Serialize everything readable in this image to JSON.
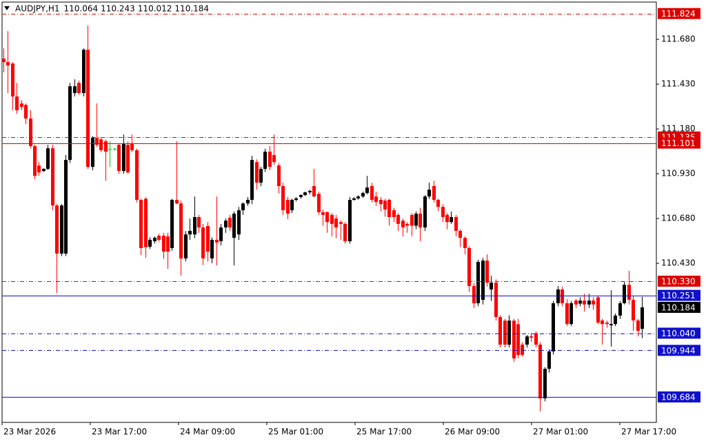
{
  "chart_data": {
    "type": "candlestick",
    "header": {
      "symbol": "AUDJPY,H1",
      "ohlc": [
        "110.064",
        "110.243",
        "110.012",
        "110.184"
      ]
    },
    "bull_color": "#000000",
    "bear_color": "#ff0000",
    "doji_color": "#00c000",
    "ylim": [
      109.542,
      111.888
    ],
    "yticks": [
      {
        "value": 110.43,
        "label": "110.430"
      },
      {
        "value": 110.68,
        "label": "110.680"
      },
      {
        "value": 110.93,
        "label": "110.930"
      },
      {
        "value": 111.18,
        "label": "111.180"
      },
      {
        "value": 111.43,
        "label": "111.430"
      },
      {
        "value": 111.68,
        "label": "111.680"
      }
    ],
    "x_labels": [
      "23 Mar 2026",
      "23 Mar 17:00",
      "24 Mar 09:00",
      "25 Mar 01:00",
      "25 Mar 17:00",
      "26 Mar 09:00",
      "27 Mar 01:00",
      "27 Mar 17:00"
    ],
    "levels": [
      {
        "value": 111.824,
        "label": "111.824",
        "color": "#dd0000",
        "style": "dashdot"
      },
      {
        "value": 111.135,
        "label": "111.135",
        "color": "#dd0000",
        "style": "dashdot"
      },
      {
        "value": 111.101,
        "label": "111.101",
        "color": "#dd0000",
        "style": "solid"
      },
      {
        "value": 110.33,
        "label": "110.330",
        "color": "#dd0000",
        "style": "dashdot"
      },
      {
        "value": 110.251,
        "label": "110.251",
        "color": "#1010cc",
        "style": "solid"
      },
      {
        "value": 110.04,
        "label": "110.040",
        "color": "#1010cc",
        "style": "dashdot"
      },
      {
        "value": 109.944,
        "label": "109.944",
        "color": "#1010cc",
        "style": "dashdot"
      },
      {
        "value": 109.684,
        "label": "109.684",
        "color": "#1010cc",
        "style": "solid"
      }
    ],
    "current": {
      "value": 110.184,
      "label": "110.184",
      "color": "#000000"
    },
    "candles": [
      [
        111.572,
        111.63,
        111.495,
        111.553
      ],
      [
        111.553,
        111.726,
        111.38,
        111.534
      ],
      [
        111.545,
        111.553,
        111.284,
        111.361
      ],
      [
        111.361,
        111.437,
        111.264,
        111.284
      ],
      [
        111.322,
        111.341,
        111.284,
        111.303
      ],
      [
        111.314,
        111.322,
        111.207,
        111.238
      ],
      [
        111.238,
        111.284,
        111.072,
        111.084
      ],
      [
        111.084,
        111.091,
        110.899,
        110.918
      ],
      [
        110.976,
        110.995,
        110.918,
        110.937
      ],
      [
        110.945,
        110.96,
        110.94,
        110.957
      ],
      [
        110.957,
        111.091,
        110.95,
        111.072
      ],
      [
        111.072,
        111.091,
        110.726,
        110.753
      ],
      [
        110.753,
        110.76,
        110.264,
        110.484
      ],
      [
        110.484,
        110.76,
        110.47,
        110.753
      ],
      [
        110.484,
        111.034,
        110.47,
        111.007
      ],
      [
        111.007,
        111.437,
        110.99,
        111.418
      ],
      [
        111.38,
        111.457,
        111.361,
        111.418
      ],
      [
        111.437,
        111.45,
        111.37,
        111.38
      ],
      [
        111.38,
        111.63,
        111.361,
        111.622
      ],
      [
        111.622,
        111.757,
        110.957,
        110.968
      ],
      [
        110.968,
        111.14,
        110.95,
        111.13
      ],
      [
        111.13,
        111.322,
        111.08,
        111.091
      ],
      [
        111.122,
        111.13,
        111.05,
        111.061
      ],
      [
        111.111,
        111.12,
        110.891,
        111.053
      ],
      [
        111.068,
        111.111,
        110.968,
        111.068
      ],
      [
        111.068,
        111.075,
        111.06,
        111.068
      ],
      [
        111.091,
        111.1,
        110.93,
        110.945
      ],
      [
        110.945,
        111.149,
        110.93,
        111.099
      ],
      [
        111.091,
        111.11,
        110.93,
        110.937
      ],
      [
        111.099,
        111.149,
        111.05,
        111.061
      ],
      [
        111.061,
        111.07,
        110.77,
        110.784
      ],
      [
        110.784,
        110.79,
        110.476,
        110.515
      ],
      [
        110.79,
        110.8,
        110.46,
        110.52
      ],
      [
        110.522,
        110.575,
        110.51,
        110.561
      ],
      [
        110.553,
        110.58,
        110.54,
        110.572
      ],
      [
        110.584,
        110.595,
        110.55,
        110.561
      ],
      [
        110.584,
        110.6,
        110.455,
        110.495
      ],
      [
        110.58,
        110.6,
        110.399,
        110.495
      ],
      [
        110.515,
        110.79,
        110.5,
        110.784
      ],
      [
        110.784,
        111.111,
        110.76,
        110.764
      ],
      [
        110.764,
        110.78,
        110.361,
        110.457
      ],
      [
        110.457,
        110.61,
        110.44,
        110.591
      ],
      [
        110.591,
        110.68,
        110.56,
        110.611
      ],
      [
        110.591,
        110.803,
        110.57,
        110.688
      ],
      [
        110.688,
        110.7,
        110.6,
        110.63
      ],
      [
        110.63,
        110.65,
        110.42,
        110.457
      ],
      [
        110.638,
        110.66,
        110.44,
        110.495
      ],
      [
        110.457,
        110.575,
        110.43,
        110.561
      ],
      [
        110.561,
        110.803,
        110.418,
        110.546
      ],
      [
        110.553,
        110.65,
        110.53,
        110.63
      ],
      [
        110.63,
        110.68,
        110.6,
        110.668
      ],
      [
        110.684,
        110.7,
        110.61,
        110.63
      ],
      [
        110.572,
        110.72,
        110.418,
        110.707
      ],
      [
        110.591,
        110.745,
        110.56,
        110.726
      ],
      [
        110.726,
        110.77,
        110.7,
        110.764
      ],
      [
        110.764,
        110.8,
        110.75,
        110.784
      ],
      [
        110.784,
        111.03,
        110.76,
        111.007
      ],
      [
        110.995,
        111.01,
        110.841,
        110.88
      ],
      [
        110.88,
        110.97,
        110.86,
        110.957
      ],
      [
        110.957,
        111.07,
        110.94,
        111.053
      ],
      [
        111.053,
        111.084,
        110.95,
        110.968
      ],
      [
        111.034,
        111.149,
        110.98,
        110.995
      ],
      [
        110.976,
        110.99,
        110.82,
        110.861
      ],
      [
        110.861,
        110.88,
        110.7,
        110.726
      ],
      [
        110.784,
        110.8,
        110.676,
        110.707
      ],
      [
        110.726,
        110.79,
        110.71,
        110.784
      ],
      [
        110.784,
        110.8,
        110.775,
        110.792
      ],
      [
        110.8,
        110.815,
        110.79,
        110.811
      ],
      [
        110.811,
        110.83,
        110.805,
        110.826
      ],
      [
        110.826,
        110.84,
        110.815,
        110.834
      ],
      [
        110.861,
        110.957,
        110.8,
        110.803
      ],
      [
        110.818,
        110.83,
        110.7,
        110.715
      ],
      [
        110.715,
        110.73,
        110.64,
        110.7
      ],
      [
        110.715,
        110.72,
        110.6,
        110.66
      ],
      [
        110.7,
        110.71,
        110.58,
        110.65
      ],
      [
        110.68,
        110.7,
        110.57,
        110.63
      ],
      [
        110.66,
        110.67,
        110.56,
        110.65
      ],
      [
        110.65,
        110.66,
        110.54,
        110.553
      ],
      [
        110.553,
        110.8,
        110.54,
        110.784
      ],
      [
        110.784,
        110.8,
        110.78,
        110.792
      ],
      [
        110.792,
        110.81,
        110.785,
        110.803
      ],
      [
        110.803,
        110.83,
        110.795,
        110.822
      ],
      [
        110.822,
        110.918,
        110.815,
        110.853
      ],
      [
        110.861,
        110.88,
        110.77,
        110.784
      ],
      [
        110.803,
        110.83,
        110.75,
        110.772
      ],
      [
        110.784,
        110.8,
        110.72,
        110.76
      ],
      [
        110.78,
        110.79,
        110.69,
        110.73
      ],
      [
        110.784,
        110.79,
        110.64,
        110.688
      ],
      [
        110.726,
        110.74,
        110.66,
        110.688
      ],
      [
        110.7,
        110.71,
        110.61,
        110.65
      ],
      [
        110.668,
        110.68,
        110.58,
        110.63
      ],
      [
        110.65,
        110.66,
        110.6,
        110.64
      ],
      [
        110.7,
        110.71,
        110.58,
        110.64
      ],
      [
        110.64,
        110.72,
        110.62,
        110.707
      ],
      [
        110.707,
        110.74,
        110.553,
        110.63
      ],
      [
        110.63,
        110.81,
        110.61,
        110.803
      ],
      [
        110.803,
        110.88,
        110.79,
        110.841
      ],
      [
        110.861,
        110.891,
        110.77,
        110.784
      ],
      [
        110.784,
        110.79,
        110.72,
        110.745
      ],
      [
        110.745,
        110.76,
        110.66,
        110.688
      ],
      [
        110.7,
        110.71,
        110.62,
        110.66
      ],
      [
        110.66,
        110.72,
        110.65,
        110.688
      ],
      [
        110.688,
        110.7,
        110.58,
        110.611
      ],
      [
        110.611,
        110.62,
        110.52,
        110.572
      ],
      [
        110.572,
        110.58,
        110.48,
        110.515
      ],
      [
        110.515,
        110.525,
        110.27,
        110.303
      ],
      [
        110.303,
        110.32,
        110.18,
        110.207
      ],
      [
        110.207,
        110.45,
        110.19,
        110.438
      ],
      [
        110.226,
        110.46,
        110.2,
        110.445
      ],
      [
        110.445,
        110.48,
        110.3,
        110.322
      ],
      [
        110.284,
        110.36,
        110.22,
        110.322
      ],
      [
        110.322,
        110.34,
        110.11,
        110.13
      ],
      [
        110.13,
        110.14,
        109.96,
        109.976
      ],
      [
        110.11,
        110.12,
        109.96,
        109.976
      ],
      [
        109.976,
        110.14,
        109.96,
        110.11
      ],
      [
        110.11,
        110.12,
        109.88,
        109.899
      ],
      [
        110.09,
        110.12,
        109.9,
        109.918
      ],
      [
        109.976,
        109.99,
        109.91,
        109.918
      ],
      [
        109.976,
        110.03,
        109.96,
        110.022
      ],
      [
        110.022,
        110.04,
        109.99,
        110.015
      ],
      [
        110.04,
        110.05,
        109.96,
        109.976
      ],
      [
        109.976,
        109.99,
        109.603,
        109.676
      ],
      [
        109.676,
        109.85,
        109.66,
        109.841
      ],
      [
        109.841,
        109.95,
        109.82,
        109.938
      ],
      [
        109.938,
        110.22,
        109.92,
        110.207
      ],
      [
        110.207,
        110.303,
        110.19,
        110.284
      ],
      [
        110.284,
        110.3,
        110.19,
        110.207
      ],
      [
        110.207,
        110.23,
        110.08,
        110.091
      ],
      [
        110.091,
        110.22,
        110.08,
        110.207
      ],
      [
        110.222,
        110.23,
        110.18,
        110.2
      ],
      [
        110.205,
        110.24,
        110.19,
        110.222
      ],
      [
        110.222,
        110.26,
        110.16,
        110.2
      ],
      [
        110.2,
        110.26,
        110.18,
        110.222
      ],
      [
        110.222,
        110.24,
        110.17,
        110.2
      ],
      [
        110.24,
        110.25,
        110.09,
        110.099
      ],
      [
        110.111,
        110.12,
        109.976,
        110.091
      ],
      [
        110.099,
        110.11,
        110.07,
        110.091
      ],
      [
        110.084,
        110.28,
        109.965,
        110.091
      ],
      [
        110.091,
        110.15,
        110.08,
        110.138
      ],
      [
        110.138,
        110.22,
        110.12,
        110.207
      ],
      [
        110.207,
        110.33,
        110.2,
        110.31
      ],
      [
        110.31,
        110.388,
        110.2,
        110.226
      ],
      [
        110.226,
        110.25,
        110.053,
        110.111
      ],
      [
        110.111,
        110.12,
        110.022,
        110.053
      ],
      [
        110.064,
        110.243,
        110.012,
        110.184
      ]
    ]
  }
}
